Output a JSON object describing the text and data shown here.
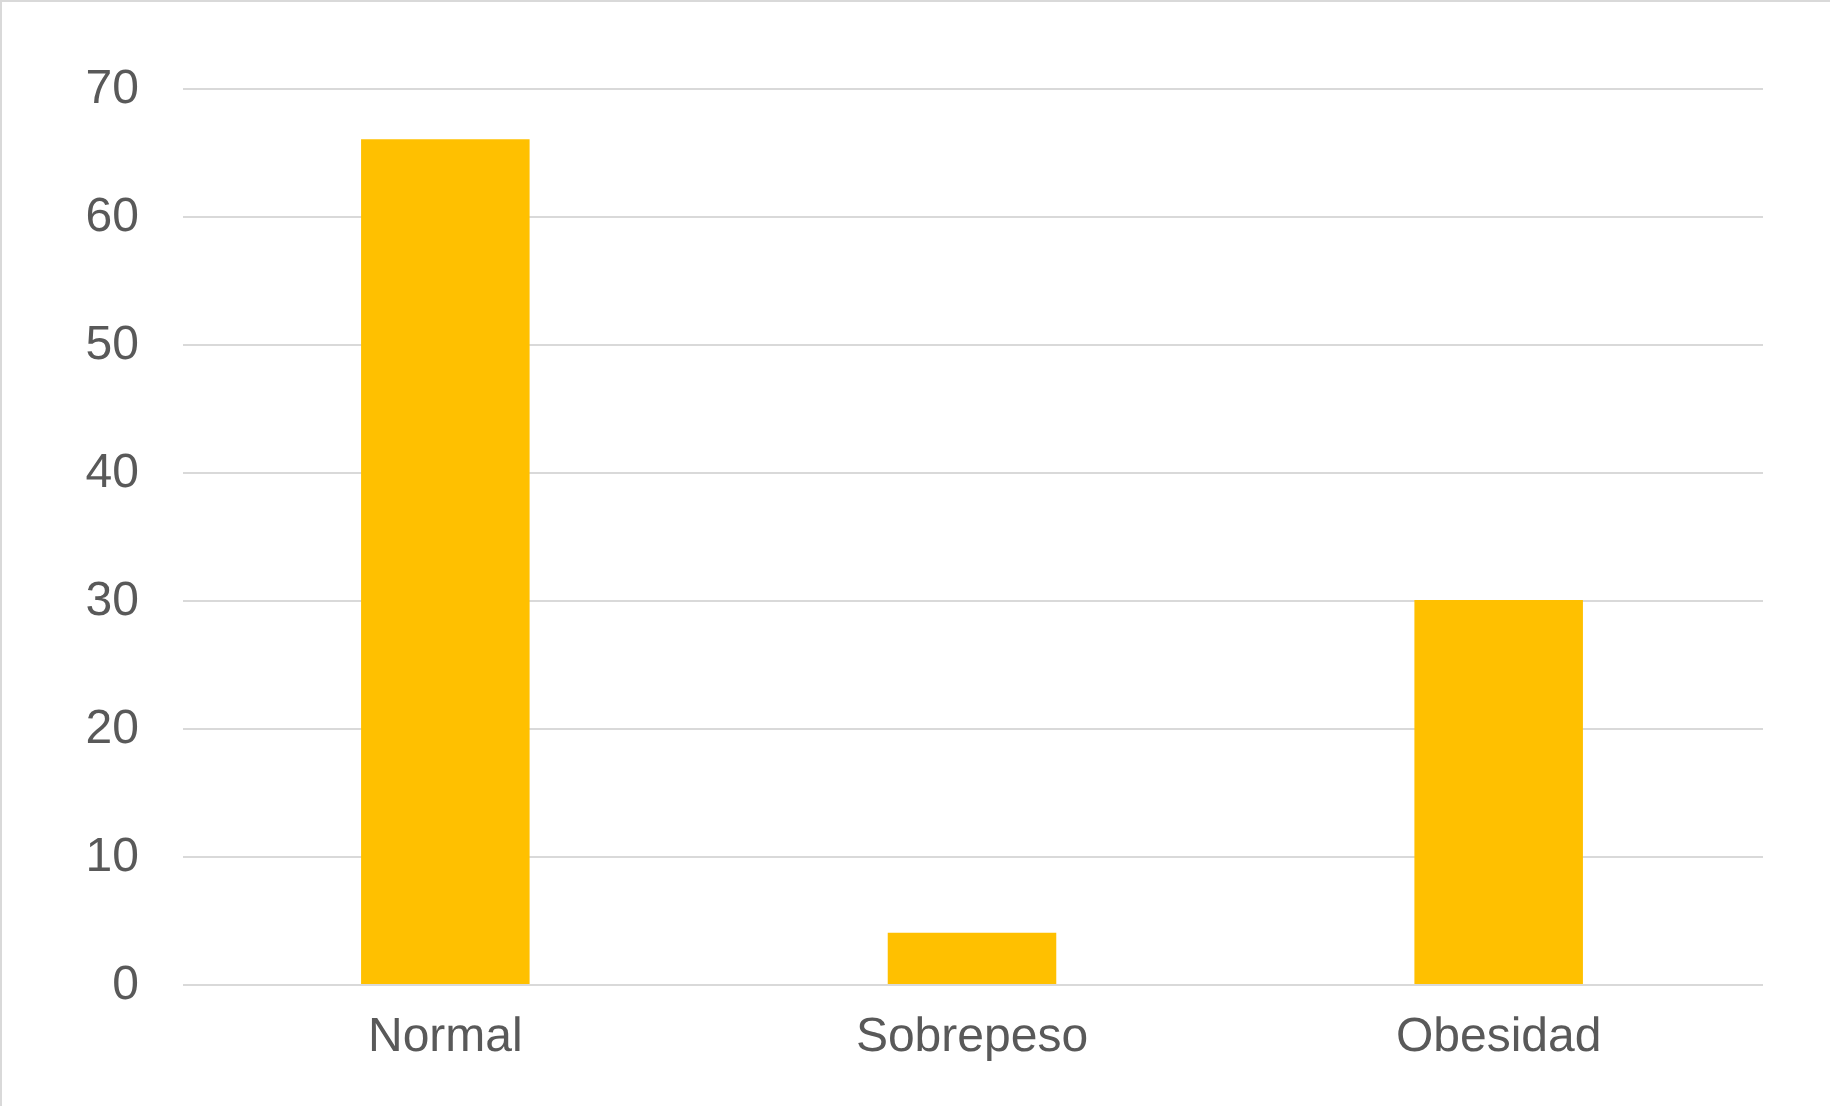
{
  "chart_data": {
    "type": "bar",
    "categories": [
      "Normal",
      "Sobrepeso",
      "Obesidad"
    ],
    "values": [
      66,
      4,
      30
    ],
    "color": "#ffc000",
    "ylim": [
      0,
      70
    ],
    "yticks": [
      0,
      10,
      20,
      30,
      40,
      50,
      60,
      70
    ],
    "grid": "y"
  }
}
